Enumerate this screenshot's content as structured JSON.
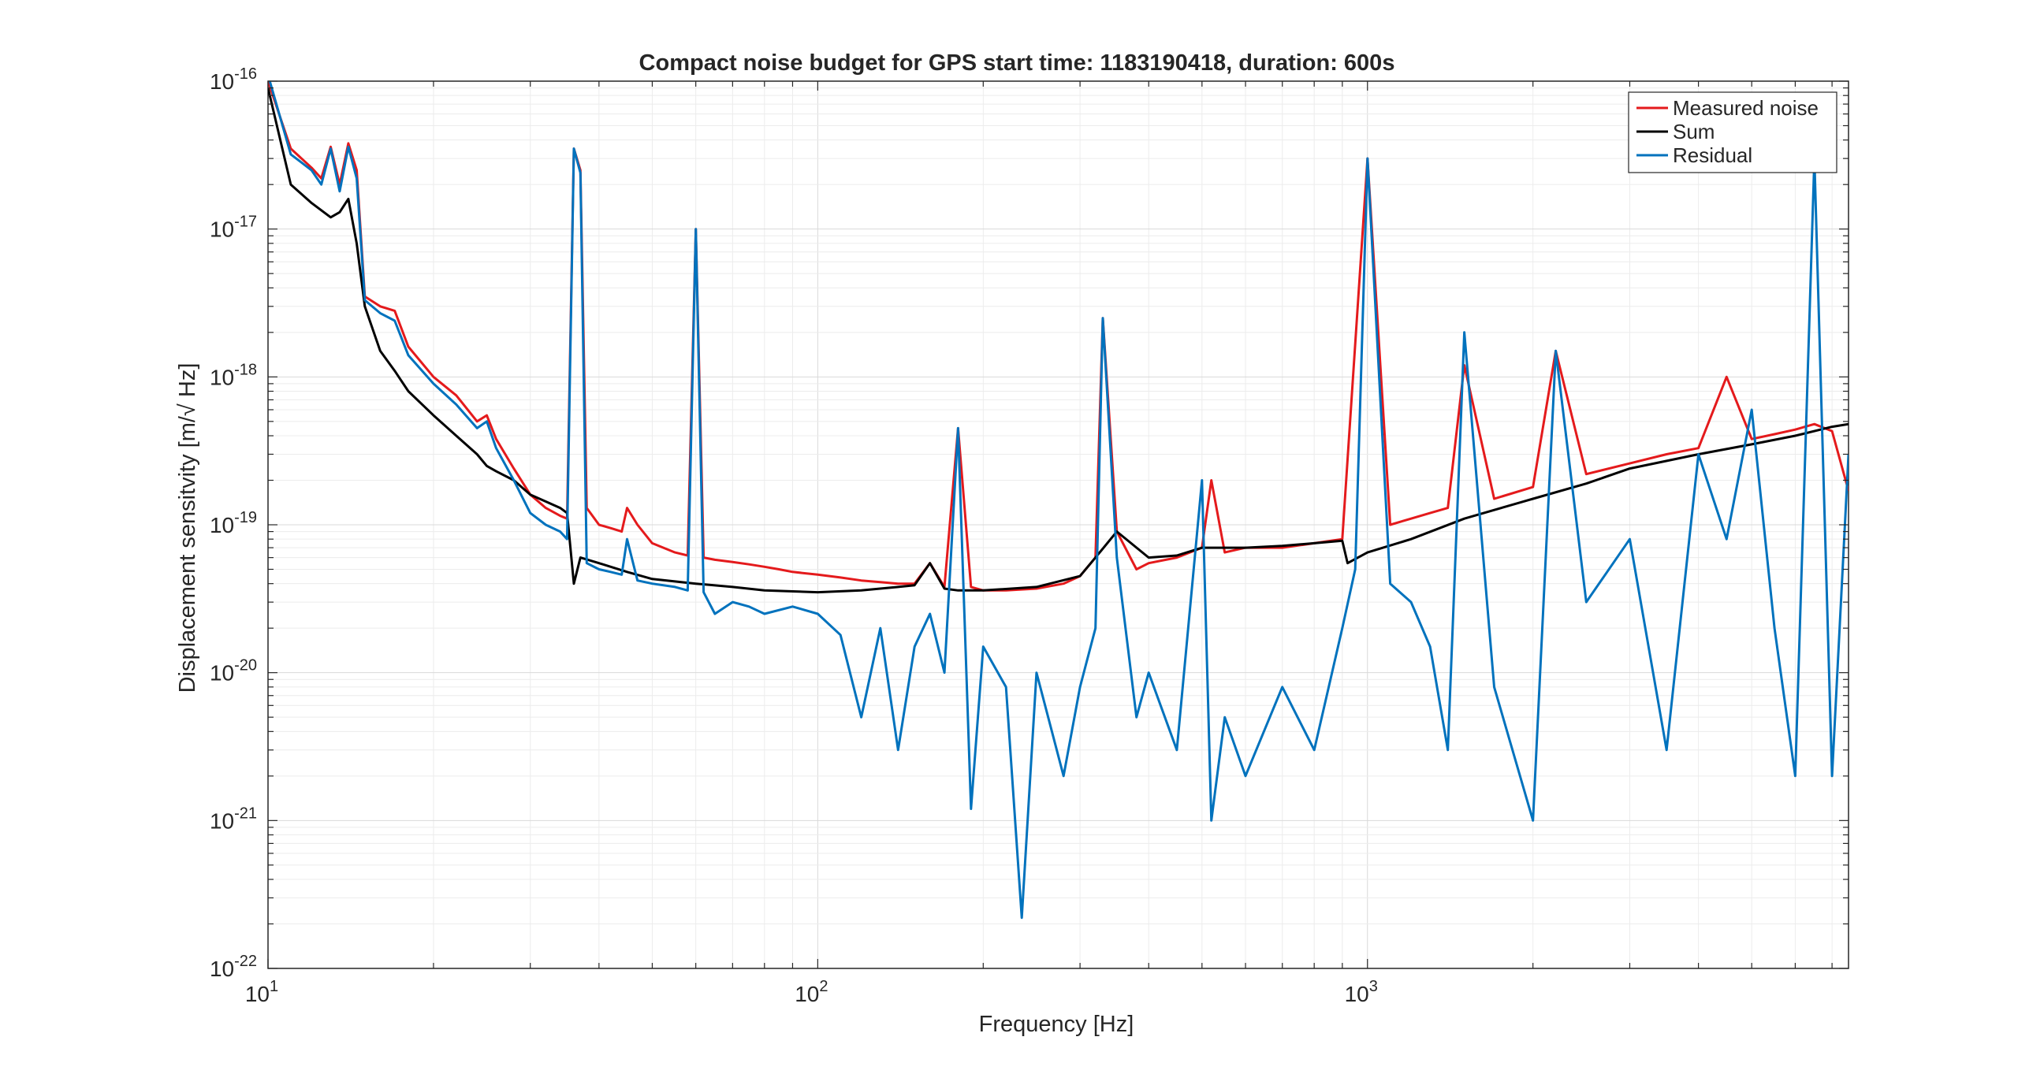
{
  "figure": {
    "colors": {
      "background": "#ffffff",
      "axes": "#262626",
      "grid_major": "#d9d9d9",
      "grid_minor": "#ececec"
    }
  },
  "chart_data": {
    "type": "line",
    "title": "Compact noise budget for GPS start time: 1183190418, duration: 600s",
    "xlabel": "Frequency [Hz]",
    "ylabel": "Displacement sensitvity [m/√ Hz]",
    "xscale": "log",
    "yscale": "log",
    "xlim": [
      10,
      7500
    ],
    "ylim": [
      1e-22,
      1e-16
    ],
    "grid": true,
    "legend_position": "top-right",
    "x_ticks": [
      {
        "value": 10,
        "base": "10",
        "exp": "1"
      },
      {
        "value": 100,
        "base": "10",
        "exp": "2"
      },
      {
        "value": 1000,
        "base": "10",
        "exp": "3"
      }
    ],
    "y_ticks": [
      {
        "value": 1e-22,
        "base": "10",
        "exp": "-22"
      },
      {
        "value": 1e-21,
        "base": "10",
        "exp": "-21"
      },
      {
        "value": 1e-20,
        "base": "10",
        "exp": "-20"
      },
      {
        "value": 1e-19,
        "base": "10",
        "exp": "-19"
      },
      {
        "value": 1e-18,
        "base": "10",
        "exp": "-18"
      },
      {
        "value": 1e-17,
        "base": "10",
        "exp": "-17"
      },
      {
        "value": 1e-16,
        "base": "10",
        "exp": "-16"
      }
    ],
    "series": [
      {
        "name": "Measured noise",
        "color": "#e41a1c",
        "x": [
          10,
          11,
          12,
          12.5,
          13,
          13.5,
          14,
          14.5,
          15,
          16,
          17,
          18,
          20,
          22,
          24,
          25,
          26,
          28,
          30,
          32,
          34,
          35,
          36,
          37,
          38,
          40,
          42,
          44,
          45,
          47,
          50,
          55,
          58,
          60,
          62,
          65,
          70,
          75,
          80,
          85,
          90,
          100,
          110,
          120,
          130,
          140,
          150,
          160,
          170,
          180,
          190,
          200,
          220,
          250,
          280,
          300,
          320,
          330,
          350,
          380,
          400,
          450,
          500,
          520,
          550,
          600,
          700,
          800,
          900,
          1000,
          1100,
          1200,
          1300,
          1400,
          1500,
          1700,
          2000,
          2200,
          2500,
          3000,
          3500,
          4000,
          4500,
          5000,
          5500,
          6000,
          6500,
          7000,
          7500
        ],
        "y": [
          1e-16,
          3.5e-17,
          2.6e-17,
          2.2e-17,
          3.6e-17,
          2e-17,
          3.8e-17,
          2.5e-17,
          3.5e-18,
          3e-18,
          2.8e-18,
          1.6e-18,
          1e-18,
          7.5e-19,
          5e-19,
          5.5e-19,
          3.8e-19,
          2.4e-19,
          1.6e-19,
          1.3e-19,
          1.15e-19,
          1.1e-19,
          3.5e-17,
          2.5e-17,
          1.3e-19,
          1e-19,
          9.5e-20,
          9e-20,
          1.3e-19,
          1e-19,
          7.5e-20,
          6.5e-20,
          6.2e-20,
          1e-17,
          6e-20,
          5.8e-20,
          5.6e-20,
          5.4e-20,
          5.2e-20,
          5e-20,
          4.8e-20,
          4.6e-20,
          4.4e-20,
          4.2e-20,
          4.1e-20,
          4e-20,
          4e-20,
          5.5e-20,
          3.8e-20,
          4.5e-19,
          3.8e-20,
          3.6e-20,
          3.6e-20,
          3.7e-20,
          4e-20,
          4.5e-20,
          6e-20,
          2.5e-18,
          9e-20,
          5e-20,
          5.5e-20,
          6e-20,
          7e-20,
          2e-19,
          6.5e-20,
          7e-20,
          7e-20,
          7.5e-20,
          8e-20,
          3e-17,
          1e-19,
          1.1e-19,
          1.2e-19,
          1.3e-19,
          1.2e-18,
          1.5e-19,
          1.8e-19,
          1.5e-18,
          2.2e-19,
          2.6e-19,
          3e-19,
          3.3e-19,
          1e-18,
          3.8e-19,
          4.1e-19,
          4.4e-19,
          4.8e-19,
          4.3e-19,
          1.7e-19
        ]
      },
      {
        "name": "Sum",
        "color": "#000000",
        "x": [
          10,
          11,
          12,
          13,
          13.5,
          14,
          14.5,
          15,
          16,
          17,
          18,
          20,
          22,
          24,
          25,
          26,
          28,
          30,
          34,
          35,
          36,
          37,
          40,
          45,
          50,
          60,
          70,
          80,
          100,
          120,
          140,
          150,
          160,
          170,
          180,
          200,
          250,
          300,
          320,
          350,
          400,
          450,
          500,
          600,
          700,
          800,
          900,
          920,
          1000,
          1200,
          1500,
          2000,
          2500,
          3000,
          4000,
          5000,
          6000,
          7000,
          7500
        ],
        "y": [
          9e-17,
          2e-17,
          1.5e-17,
          1.2e-17,
          1.3e-17,
          1.6e-17,
          8e-18,
          3e-18,
          1.5e-18,
          1.1e-18,
          8e-19,
          5.5e-19,
          4e-19,
          3e-19,
          2.5e-19,
          2.3e-19,
          2e-19,
          1.6e-19,
          1.3e-19,
          1.2e-19,
          4e-20,
          6e-20,
          5.5e-20,
          4.8e-20,
          4.3e-20,
          4e-20,
          3.8e-20,
          3.6e-20,
          3.5e-20,
          3.6e-20,
          3.8e-20,
          3.9e-20,
          5.5e-20,
          3.7e-20,
          3.6e-20,
          3.6e-20,
          3.8e-20,
          4.5e-20,
          6e-20,
          9e-20,
          6e-20,
          6.2e-20,
          7e-20,
          7e-20,
          7.2e-20,
          7.5e-20,
          7.8e-20,
          5.5e-20,
          6.5e-20,
          8e-20,
          1.1e-19,
          1.5e-19,
          1.9e-19,
          2.4e-19,
          3e-19,
          3.5e-19,
          4e-19,
          4.6e-19,
          4.8e-19
        ]
      },
      {
        "name": "Residual",
        "color": "#0072bd",
        "x": [
          10,
          11,
          12,
          12.5,
          13,
          13.5,
          14,
          14.5,
          15,
          16,
          17,
          18,
          20,
          22,
          24,
          25,
          26,
          28,
          30,
          32,
          34,
          35,
          36,
          37,
          38,
          40,
          42,
          44,
          45,
          47,
          50,
          55,
          58,
          60,
          62,
          65,
          70,
          75,
          80,
          90,
          100,
          110,
          120,
          130,
          140,
          150,
          160,
          170,
          180,
          190,
          200,
          220,
          235,
          250,
          280,
          300,
          320,
          330,
          350,
          380,
          400,
          450,
          500,
          520,
          550,
          600,
          700,
          800,
          900,
          950,
          1000,
          1100,
          1200,
          1300,
          1400,
          1500,
          1700,
          2000,
          2200,
          2500,
          3000,
          3500,
          4000,
          4500,
          5000,
          5500,
          6000,
          6500,
          7000,
          7500
        ],
        "y": [
          1.1e-16,
          3.2e-17,
          2.5e-17,
          2e-17,
          3.5e-17,
          1.8e-17,
          3.6e-17,
          2.2e-17,
          3.3e-18,
          2.7e-18,
          2.4e-18,
          1.4e-18,
          9e-19,
          6.5e-19,
          4.5e-19,
          5e-19,
          3.3e-19,
          2e-19,
          1.2e-19,
          1e-19,
          9e-20,
          8e-20,
          3.5e-17,
          2.4e-17,
          5.5e-20,
          5e-20,
          4.8e-20,
          4.6e-20,
          8e-20,
          4.2e-20,
          4e-20,
          3.8e-20,
          3.6e-20,
          1e-17,
          3.5e-20,
          2.5e-20,
          3e-20,
          2.8e-20,
          2.5e-20,
          2.8e-20,
          2.5e-20,
          1.8e-20,
          5e-21,
          2e-20,
          3e-21,
          1.5e-20,
          2.5e-20,
          1e-20,
          4.5e-19,
          1.2e-21,
          1.5e-20,
          8e-21,
          2.2e-22,
          1e-20,
          2e-21,
          8e-21,
          2e-20,
          2.5e-18,
          6e-20,
          5e-21,
          1e-20,
          3e-21,
          2e-19,
          1e-21,
          5e-21,
          2e-21,
          8e-21,
          3e-21,
          2e-20,
          5e-20,
          3e-17,
          4e-20,
          3e-20,
          1.5e-20,
          3e-21,
          2e-18,
          8e-21,
          1e-21,
          1.5e-18,
          3e-20,
          8e-20,
          3e-21,
          3e-19,
          8e-20,
          6e-19,
          2e-20,
          2e-21,
          3e-17,
          2e-21,
          3e-19
        ]
      }
    ]
  }
}
